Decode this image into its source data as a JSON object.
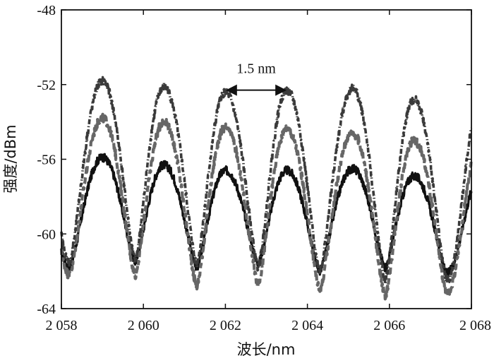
{
  "chart_data": {
    "type": "line",
    "title": "",
    "xlabel": "波长/nm",
    "ylabel": "强度/dBm",
    "xlim": [
      2058,
      2068
    ],
    "ylim": [
      -64,
      -48
    ],
    "xticks": [
      2058,
      2060,
      2062,
      2064,
      2066,
      2068
    ],
    "xtick_labels": [
      "2 058",
      "2 060",
      "2 062",
      "2 064",
      "2 066",
      "2 068"
    ],
    "yticks": [
      -64,
      -60,
      -56,
      -52,
      -48
    ],
    "ytick_labels": [
      "-64",
      "-60",
      "-56",
      "-52",
      "-48"
    ],
    "grid": false,
    "legend": "none",
    "annotation": {
      "text": "1.5 nm",
      "x_start": 2062.0,
      "x_end": 2063.5,
      "y": -52.3
    },
    "series": [
      {
        "style": "solid",
        "color": "#111111",
        "peaks": [
          {
            "x": 2059.0,
            "y": -55.9
          },
          {
            "x": 2060.5,
            "y": -56.3
          },
          {
            "x": 2062.0,
            "y": -56.6
          },
          {
            "x": 2063.5,
            "y": -56.6
          },
          {
            "x": 2065.1,
            "y": -56.5
          },
          {
            "x": 2066.6,
            "y": -56.9
          }
        ],
        "troughs": [
          {
            "x": 2058.2,
            "y": -61.8
          },
          {
            "x": 2059.8,
            "y": -61.5
          },
          {
            "x": 2061.3,
            "y": -61.8
          },
          {
            "x": 2062.8,
            "y": -61.6
          },
          {
            "x": 2064.3,
            "y": -62.0
          },
          {
            "x": 2065.9,
            "y": -61.8
          },
          {
            "x": 2067.4,
            "y": -62.1
          }
        ]
      },
      {
        "style": "dashed",
        "color": "#666666",
        "peaks": [
          {
            "x": 2059.0,
            "y": -53.8
          },
          {
            "x": 2060.5,
            "y": -54.0
          },
          {
            "x": 2062.0,
            "y": -54.3
          },
          {
            "x": 2063.5,
            "y": -54.4
          },
          {
            "x": 2065.1,
            "y": -54.6
          },
          {
            "x": 2066.6,
            "y": -55.0
          }
        ],
        "troughs": [
          {
            "x": 2058.2,
            "y": -62.2
          },
          {
            "x": 2059.8,
            "y": -62.2
          },
          {
            "x": 2061.3,
            "y": -62.8
          },
          {
            "x": 2062.8,
            "y": -62.7
          },
          {
            "x": 2064.3,
            "y": -63.0
          },
          {
            "x": 2065.9,
            "y": -63.3
          },
          {
            "x": 2067.4,
            "y": -63.2
          }
        ]
      },
      {
        "style": "dash-dot",
        "color": "#3a3a3a",
        "peaks": [
          {
            "x": 2059.0,
            "y": -51.8
          },
          {
            "x": 2060.5,
            "y": -52.1
          },
          {
            "x": 2062.0,
            "y": -52.4
          },
          {
            "x": 2063.5,
            "y": -52.3
          },
          {
            "x": 2065.1,
            "y": -52.2
          },
          {
            "x": 2066.6,
            "y": -52.8
          }
        ],
        "troughs": [
          {
            "x": 2058.2,
            "y": -61.5
          },
          {
            "x": 2059.8,
            "y": -61.4
          },
          {
            "x": 2061.3,
            "y": -61.6
          },
          {
            "x": 2062.8,
            "y": -61.8
          },
          {
            "x": 2064.3,
            "y": -62.0
          },
          {
            "x": 2065.9,
            "y": -62.5
          },
          {
            "x": 2067.4,
            "y": -62.5
          }
        ]
      }
    ]
  }
}
